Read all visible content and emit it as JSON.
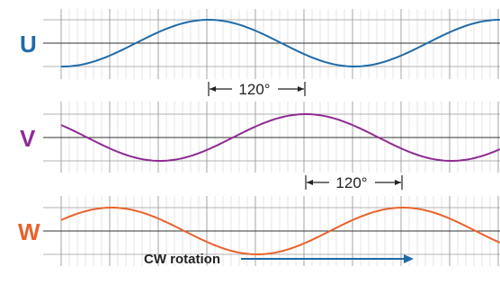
{
  "phases": [
    {
      "label": "U",
      "color": "#1f6aa8",
      "label_color": "#1f6aa8",
      "phase_deg": 0
    },
    {
      "label": "V",
      "color": "#8e2a93",
      "label_color": "#8e2a93",
      "phase_deg": 120
    },
    {
      "label": "W",
      "color": "#e8622c",
      "label_color": "#e8622c",
      "phase_deg": 240
    }
  ],
  "markers": [
    {
      "label": "120°",
      "between_phases": [
        "U",
        "V"
      ]
    },
    {
      "label": "120°",
      "between_phases": [
        "V",
        "W"
      ]
    }
  ],
  "caption": {
    "text": "CW rotation",
    "arrow_color": "#1f6aa8"
  },
  "colors": {
    "grid_minor": "#d4d4d4",
    "grid_major": "#9a9a9a",
    "axis": "#333333"
  }
}
